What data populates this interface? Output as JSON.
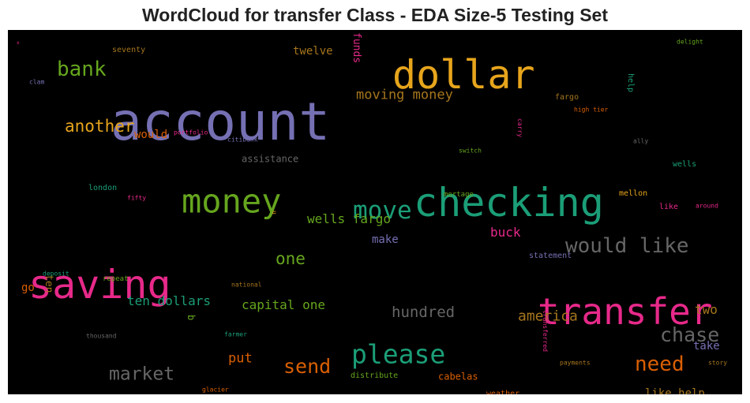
{
  "chart_data": {
    "type": "wordcloud",
    "title": "WordCloud for transfer Class - EDA Size-5 Testing Set",
    "background": "#000000",
    "colormap": [
      "#7570b3",
      "#e7a51c",
      "#1b9e77",
      "#e7298a",
      "#66a61e",
      "#d95f02",
      "#a6761d",
      "#666666"
    ],
    "words": [
      {
        "text": "account",
        "weight": 66,
        "color": "#7570b3"
      },
      {
        "text": "dollar",
        "weight": 50,
        "color": "#e7a51c"
      },
      {
        "text": "checking",
        "weight": 50,
        "color": "#1b9e77"
      },
      {
        "text": "saving",
        "weight": 50,
        "color": "#e7298a"
      },
      {
        "text": "transfer",
        "weight": 46,
        "color": "#e7298a"
      },
      {
        "text": "money",
        "weight": 42,
        "color": "#66a61e"
      },
      {
        "text": "please",
        "weight": 33,
        "color": "#1b9e77"
      },
      {
        "text": "move",
        "weight": 31,
        "color": "#1b9e77"
      },
      {
        "text": "bank",
        "weight": 26,
        "color": "#66a61e"
      },
      {
        "text": "would like",
        "weight": 26,
        "color": "#666666"
      },
      {
        "text": "need",
        "weight": 26,
        "color": "#d95f02"
      },
      {
        "text": "send",
        "weight": 25,
        "color": "#d95f02"
      },
      {
        "text": "chase",
        "weight": 25,
        "color": "#666666"
      },
      {
        "text": "market",
        "weight": 23,
        "color": "#666666"
      },
      {
        "text": "another",
        "weight": 21,
        "color": "#e7a51c"
      },
      {
        "text": "one",
        "weight": 21,
        "color": "#66a61e"
      },
      {
        "text": "hundred",
        "weight": 19,
        "color": "#666666"
      },
      {
        "text": "america",
        "weight": 18,
        "color": "#a6761d"
      },
      {
        "text": "moving money",
        "weight": 17,
        "color": "#a6761d"
      },
      {
        "text": "put",
        "weight": 17,
        "color": "#d95f02"
      },
      {
        "text": "wells fargo",
        "weight": 16,
        "color": "#66a61e"
      },
      {
        "text": "capital one",
        "weight": 16,
        "color": "#66a61e"
      },
      {
        "text": "ten dollars",
        "weight": 16,
        "color": "#1b9e77"
      },
      {
        "text": "two",
        "weight": 16,
        "color": "#a6761d"
      },
      {
        "text": "buck",
        "weight": 16,
        "color": "#e7298a"
      },
      {
        "text": "twelve",
        "weight": 14,
        "color": "#a6761d"
      },
      {
        "text": "would",
        "weight": 14,
        "color": "#d95f02"
      },
      {
        "text": "make",
        "weight": 14,
        "color": "#7570b3"
      },
      {
        "text": "like help",
        "weight": 14,
        "color": "#a6761d"
      },
      {
        "text": "take",
        "weight": 14,
        "color": "#7570b3"
      },
      {
        "text": "go",
        "weight": 14,
        "color": "#d95f02"
      },
      {
        "text": "ten",
        "weight": 13,
        "color": "#a6761d"
      },
      {
        "text": "funds",
        "weight": 13,
        "color": "#e7298a"
      },
      {
        "text": "assistance",
        "weight": 12,
        "color": "#666666"
      },
      {
        "text": "b",
        "weight": 12,
        "color": "#66a61e"
      },
      {
        "text": "cabelas",
        "weight": 12,
        "color": "#d95f02"
      },
      {
        "text": "help",
        "weight": 10,
        "color": "#1b9e77"
      },
      {
        "text": "fargo",
        "weight": 10,
        "color": "#a6761d"
      },
      {
        "text": "mellon",
        "weight": 10,
        "color": "#e7a51c"
      },
      {
        "text": "wells",
        "weight": 10,
        "color": "#1b9e77"
      },
      {
        "text": "like",
        "weight": 10,
        "color": "#e7298a"
      },
      {
        "text": "london",
        "weight": 10,
        "color": "#1b9e77"
      },
      {
        "text": "seventy",
        "weight": 10,
        "color": "#a6761d"
      },
      {
        "text": "statement",
        "weight": 10,
        "color": "#7570b3"
      },
      {
        "text": "weather",
        "weight": 10,
        "color": "#d95f02"
      },
      {
        "text": "distribute",
        "weight": 10,
        "color": "#66a61e"
      },
      {
        "text": "mortage",
        "weight": 9,
        "color": "#66a61e"
      },
      {
        "text": "repeat",
        "weight": 9,
        "color": "#66a61e"
      },
      {
        "text": "delight",
        "weight": 8,
        "color": "#66a61e"
      },
      {
        "text": "clam",
        "weight": 8,
        "color": "#7570b3"
      },
      {
        "text": "portfolio",
        "weight": 8,
        "color": "#e7298a"
      },
      {
        "text": "citibank",
        "weight": 8,
        "color": "#7570b3"
      },
      {
        "text": "high tier",
        "weight": 8,
        "color": "#d95f02"
      },
      {
        "text": "switch",
        "weight": 8,
        "color": "#66a61e"
      },
      {
        "text": "carry",
        "weight": 8,
        "color": "#e7298a"
      },
      {
        "text": "ally",
        "weight": 8,
        "color": "#666666"
      },
      {
        "text": "fifty",
        "weight": 8,
        "color": "#e7298a"
      },
      {
        "text": "around",
        "weight": 8,
        "color": "#e7298a"
      },
      {
        "text": "u",
        "weight": 8,
        "color": "#e7a51c"
      },
      {
        "text": "deposit",
        "weight": 8,
        "color": "#1b9e77"
      },
      {
        "text": "national",
        "weight": 8,
        "color": "#a6761d"
      },
      {
        "text": "thousand",
        "weight": 8,
        "color": "#666666"
      },
      {
        "text": "farmer",
        "weight": 8,
        "color": "#1b9e77"
      },
      {
        "text": "transferred",
        "weight": 8,
        "color": "#e7298a"
      },
      {
        "text": "payments",
        "weight": 8,
        "color": "#a6761d"
      },
      {
        "text": "story",
        "weight": 8,
        "color": "#a6761d"
      },
      {
        "text": "glacier",
        "weight": 8,
        "color": "#d95f02"
      },
      {
        "text": "x",
        "weight": 6,
        "color": "#e7298a"
      }
    ]
  }
}
